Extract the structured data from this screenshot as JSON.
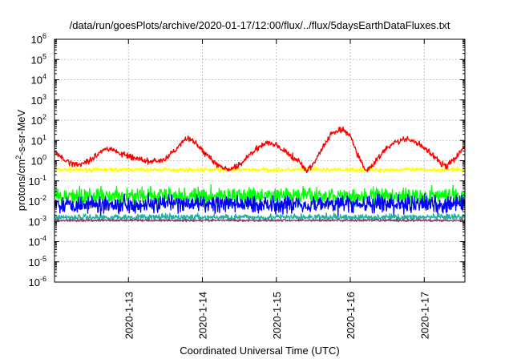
{
  "chart_data": {
    "type": "line",
    "title": "/data/run/goesPlots/archive/2020-01-17/12:00/flux/../flux/5daysEarthDataFluxes.txt",
    "xlabel": "Coordinated Universal Time (UTC)",
    "ylabel": {
      "pre": "protons/cm",
      "sup": "2",
      "post": "-s-sr-MeV"
    },
    "y_scale": "log",
    "ylim_exp": [
      -6,
      6
    ],
    "y_ticks": [
      {
        "exp": -6,
        "base": "10",
        "sup": "-6"
      },
      {
        "exp": -5,
        "base": "10",
        "sup": "-5"
      },
      {
        "exp": -4,
        "base": "10",
        "sup": "-4"
      },
      {
        "exp": -3,
        "base": "10",
        "sup": "-3"
      },
      {
        "exp": -2,
        "base": "10",
        "sup": "-2"
      },
      {
        "exp": -1,
        "base": "10",
        "sup": "-1"
      },
      {
        "exp": 0,
        "base": "10",
        "sup": "0"
      },
      {
        "exp": 1,
        "base": "10",
        "sup": "1"
      },
      {
        "exp": 2,
        "base": "10",
        "sup": "2"
      },
      {
        "exp": 3,
        "base": "10",
        "sup": "3"
      },
      {
        "exp": 4,
        "base": "10",
        "sup": "4"
      },
      {
        "exp": 5,
        "base": "10",
        "sup": "5"
      },
      {
        "exp": 6,
        "base": "10",
        "sup": "6"
      }
    ],
    "xlim_days": [
      12.0,
      17.55
    ],
    "x_ticks": [
      {
        "day": 13,
        "label": "2020-1-13"
      },
      {
        "day": 14,
        "label": "2020-1-14"
      },
      {
        "day": 15,
        "label": "2020-1-15"
      },
      {
        "day": 16,
        "label": "2020-1-16"
      },
      {
        "day": 17,
        "label": "2020-1-17"
      }
    ],
    "grid": true,
    "series": [
      {
        "color": "#ffff00",
        "noise": 0.1,
        "points": [
          [
            12.0,
            -0.45
          ],
          [
            13.0,
            -0.45
          ],
          [
            14.0,
            -0.45
          ],
          [
            15.0,
            -0.45
          ],
          [
            16.0,
            -0.45
          ],
          [
            17.0,
            -0.45
          ],
          [
            17.55,
            -0.45
          ]
        ]
      },
      {
        "color": "#1fb0a0",
        "noise": 0.15,
        "points": [
          [
            12.0,
            -2.8
          ],
          [
            13.0,
            -2.8
          ],
          [
            14.0,
            -2.8
          ],
          [
            15.0,
            -2.8
          ],
          [
            16.0,
            -2.8
          ],
          [
            17.0,
            -2.8
          ],
          [
            17.55,
            -2.8
          ]
        ]
      },
      {
        "color": "#8b3a62",
        "noise": 0.05,
        "points": [
          [
            12.0,
            -2.95
          ],
          [
            13.0,
            -2.95
          ],
          [
            14.0,
            -2.95
          ],
          [
            15.0,
            -2.95
          ],
          [
            16.0,
            -2.95
          ],
          [
            17.0,
            -2.95
          ],
          [
            17.55,
            -2.95
          ]
        ]
      },
      {
        "color": "#00ff00",
        "noise": 0.4,
        "points": [
          [
            12.0,
            -1.75
          ],
          [
            13.0,
            -1.75
          ],
          [
            14.0,
            -1.75
          ],
          [
            15.0,
            -1.75
          ],
          [
            16.0,
            -1.75
          ],
          [
            17.0,
            -1.75
          ],
          [
            17.55,
            -1.75
          ]
        ]
      },
      {
        "color": "#0000ff",
        "noise": 0.4,
        "points": [
          [
            12.0,
            -2.15
          ],
          [
            13.0,
            -2.15
          ],
          [
            14.0,
            -2.15
          ],
          [
            15.0,
            -2.15
          ],
          [
            16.0,
            -2.15
          ],
          [
            17.0,
            -2.15
          ],
          [
            17.55,
            -2.15
          ]
        ]
      },
      {
        "color": "#ff0000",
        "noise": 0.13,
        "points": [
          [
            12.0,
            0.4
          ],
          [
            12.2,
            -0.1
          ],
          [
            12.35,
            -0.2
          ],
          [
            12.5,
            0.1
          ],
          [
            12.65,
            0.5
          ],
          [
            12.75,
            0.6
          ],
          [
            12.9,
            0.35
          ],
          [
            13.1,
            0.1
          ],
          [
            13.3,
            -0.05
          ],
          [
            13.5,
            0.05
          ],
          [
            13.65,
            0.6
          ],
          [
            13.8,
            1.15
          ],
          [
            13.9,
            0.9
          ],
          [
            14.05,
            0.3
          ],
          [
            14.2,
            -0.2
          ],
          [
            14.35,
            -0.5
          ],
          [
            14.45,
            -0.3
          ],
          [
            14.55,
            -0.05
          ],
          [
            14.7,
            0.5
          ],
          [
            14.85,
            0.9
          ],
          [
            15.0,
            0.75
          ],
          [
            15.15,
            0.35
          ],
          [
            15.3,
            0.0
          ],
          [
            15.4,
            -0.5
          ],
          [
            15.5,
            -0.2
          ],
          [
            15.6,
            0.5
          ],
          [
            15.75,
            1.35
          ],
          [
            15.9,
            1.55
          ],
          [
            16.0,
            1.2
          ],
          [
            16.1,
            0.3
          ],
          [
            16.2,
            -0.5
          ],
          [
            16.3,
            -0.25
          ],
          [
            16.45,
            0.5
          ],
          [
            16.6,
            0.9
          ],
          [
            16.75,
            1.05
          ],
          [
            16.9,
            0.9
          ],
          [
            17.05,
            0.5
          ],
          [
            17.2,
            -0.05
          ],
          [
            17.3,
            -0.3
          ],
          [
            17.45,
            0.25
          ],
          [
            17.55,
            0.75
          ]
        ]
      }
    ]
  }
}
